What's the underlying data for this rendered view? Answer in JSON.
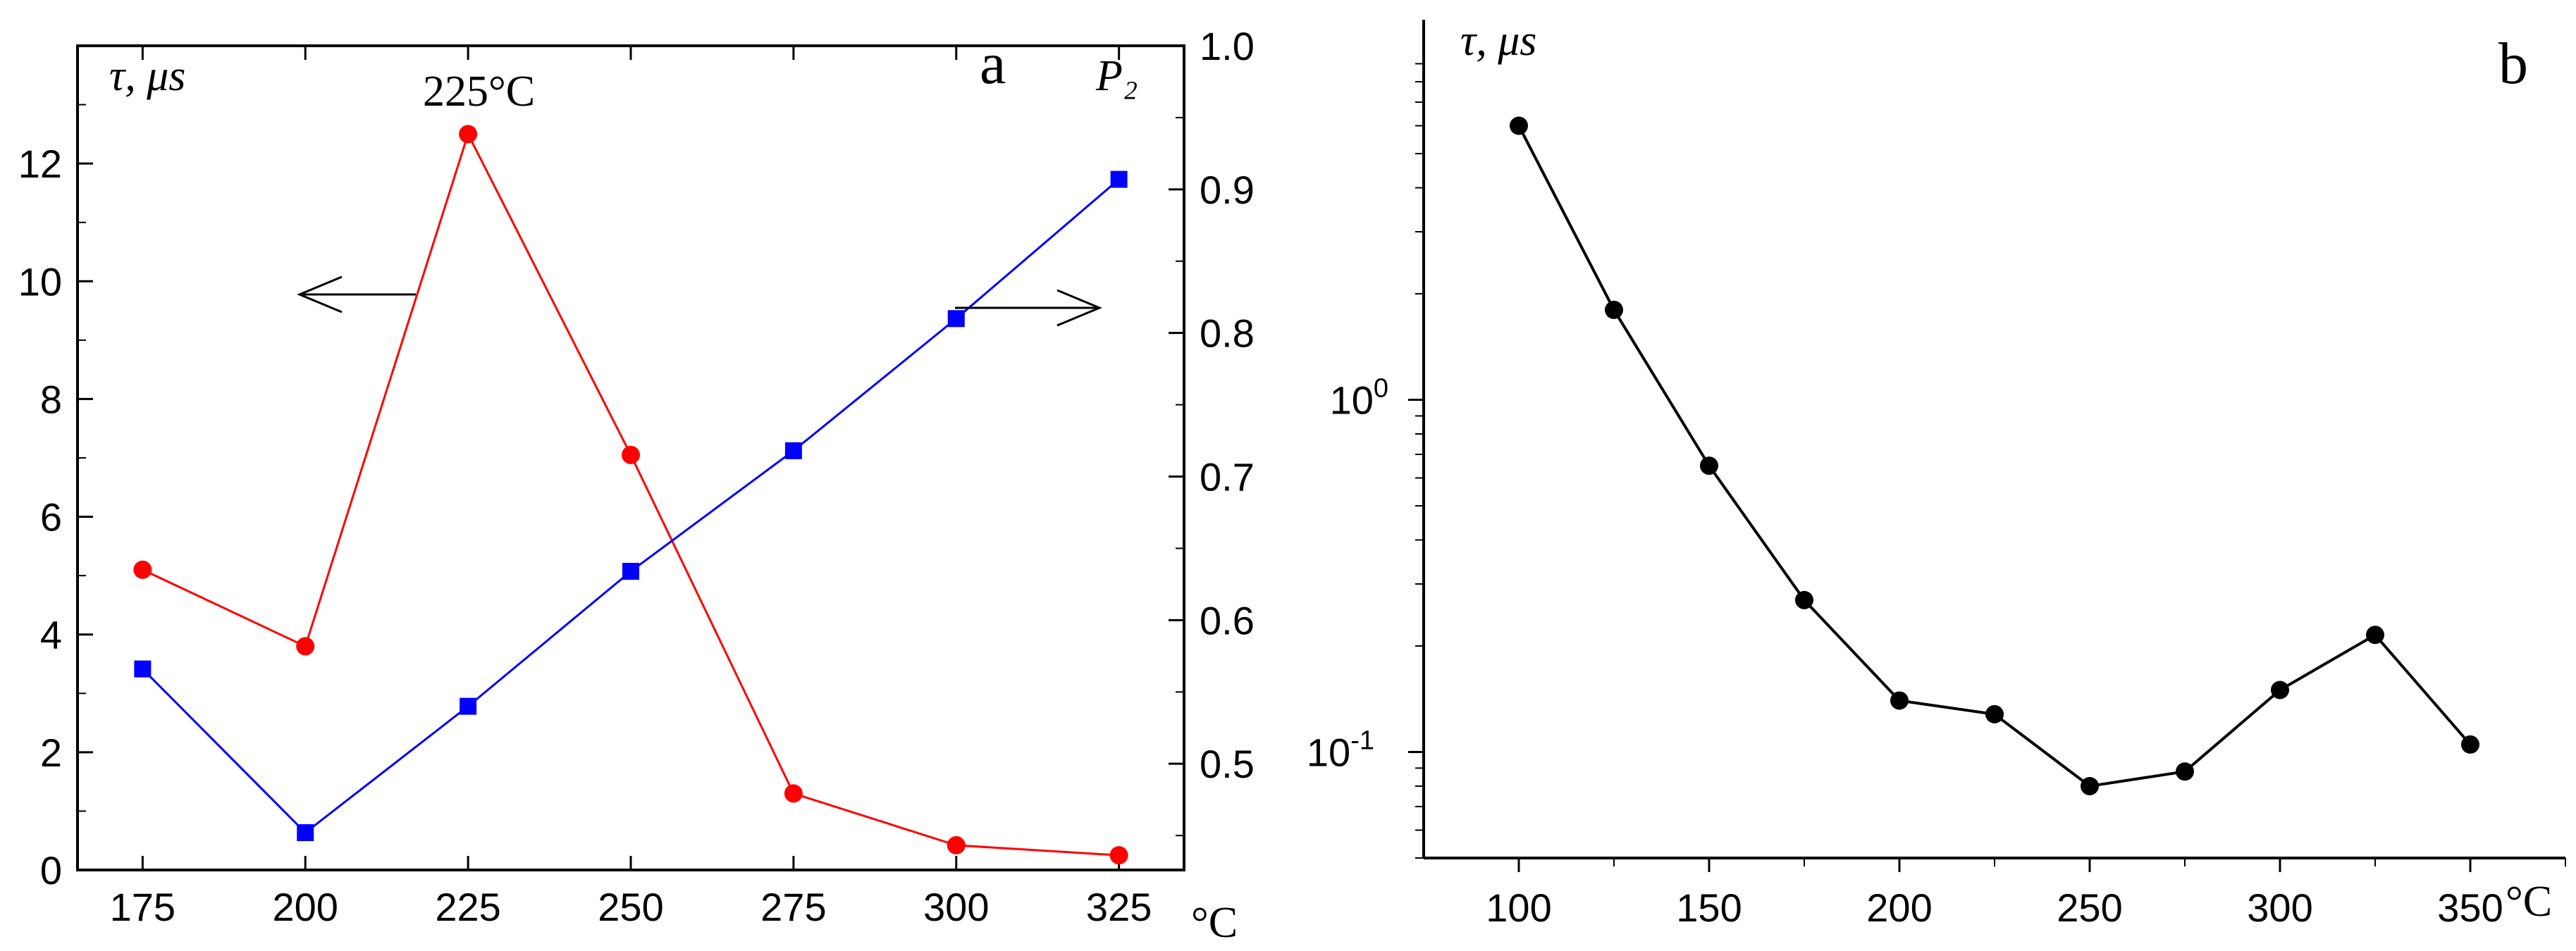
{
  "chart_data": [
    {
      "panel": "a",
      "type": "line",
      "x": [
        175,
        200,
        225,
        250,
        275,
        300,
        325
      ],
      "xticks": [
        "175",
        "200",
        "225",
        "250",
        "275",
        "300",
        "325"
      ],
      "xlim": [
        165,
        335
      ],
      "x_unit": "°C",
      "left_axis": {
        "label": "τ, μs",
        "ylim": [
          0,
          14
        ],
        "ticks": [
          "0",
          "2",
          "4",
          "6",
          "8",
          "10",
          "12"
        ]
      },
      "right_axis": {
        "label": "P₂",
        "ylim": [
          0.426,
          1.0
        ],
        "ticks": [
          "0.5",
          "0.6",
          "0.7",
          "0.8",
          "0.9",
          "1.0"
        ]
      },
      "series": [
        {
          "axis": "left",
          "color": "#ff0000",
          "marker": "circle",
          "values": [
            5.1,
            3.8,
            12.5,
            7.05,
            1.3,
            0.42,
            0.25
          ]
        },
        {
          "axis": "right",
          "color": "#0000ff",
          "marker": "square",
          "values": [
            0.566,
            0.452,
            0.54,
            0.634,
            0.718,
            0.81,
            0.907
          ]
        }
      ],
      "annotations": {
        "peak_label": "225°C",
        "panel_letter": "a"
      }
    },
    {
      "panel": "b",
      "type": "line",
      "x": [
        100,
        125,
        150,
        175,
        200,
        225,
        250,
        275,
        300,
        325,
        350
      ],
      "values": [
        6.0,
        1.8,
        0.65,
        0.27,
        0.14,
        0.128,
        0.08,
        0.088,
        0.15,
        0.215,
        0.105
      ],
      "xticks": [
        "100",
        "150",
        "200",
        "250",
        "300",
        "350"
      ],
      "xlim": [
        75,
        375
      ],
      "x_unit": "°C",
      "y_axis": {
        "label": "τ, μs",
        "scale": "log",
        "ylim": [
          0.05,
          12
        ],
        "major_ticks": [
          {
            "value": 1,
            "base": "10",
            "exp": "0"
          },
          {
            "value": 0.1,
            "base": "10",
            "exp": "-1"
          }
        ]
      },
      "series_color": "#000000",
      "marker": "circle",
      "annotations": {
        "panel_letter": "b"
      }
    }
  ]
}
